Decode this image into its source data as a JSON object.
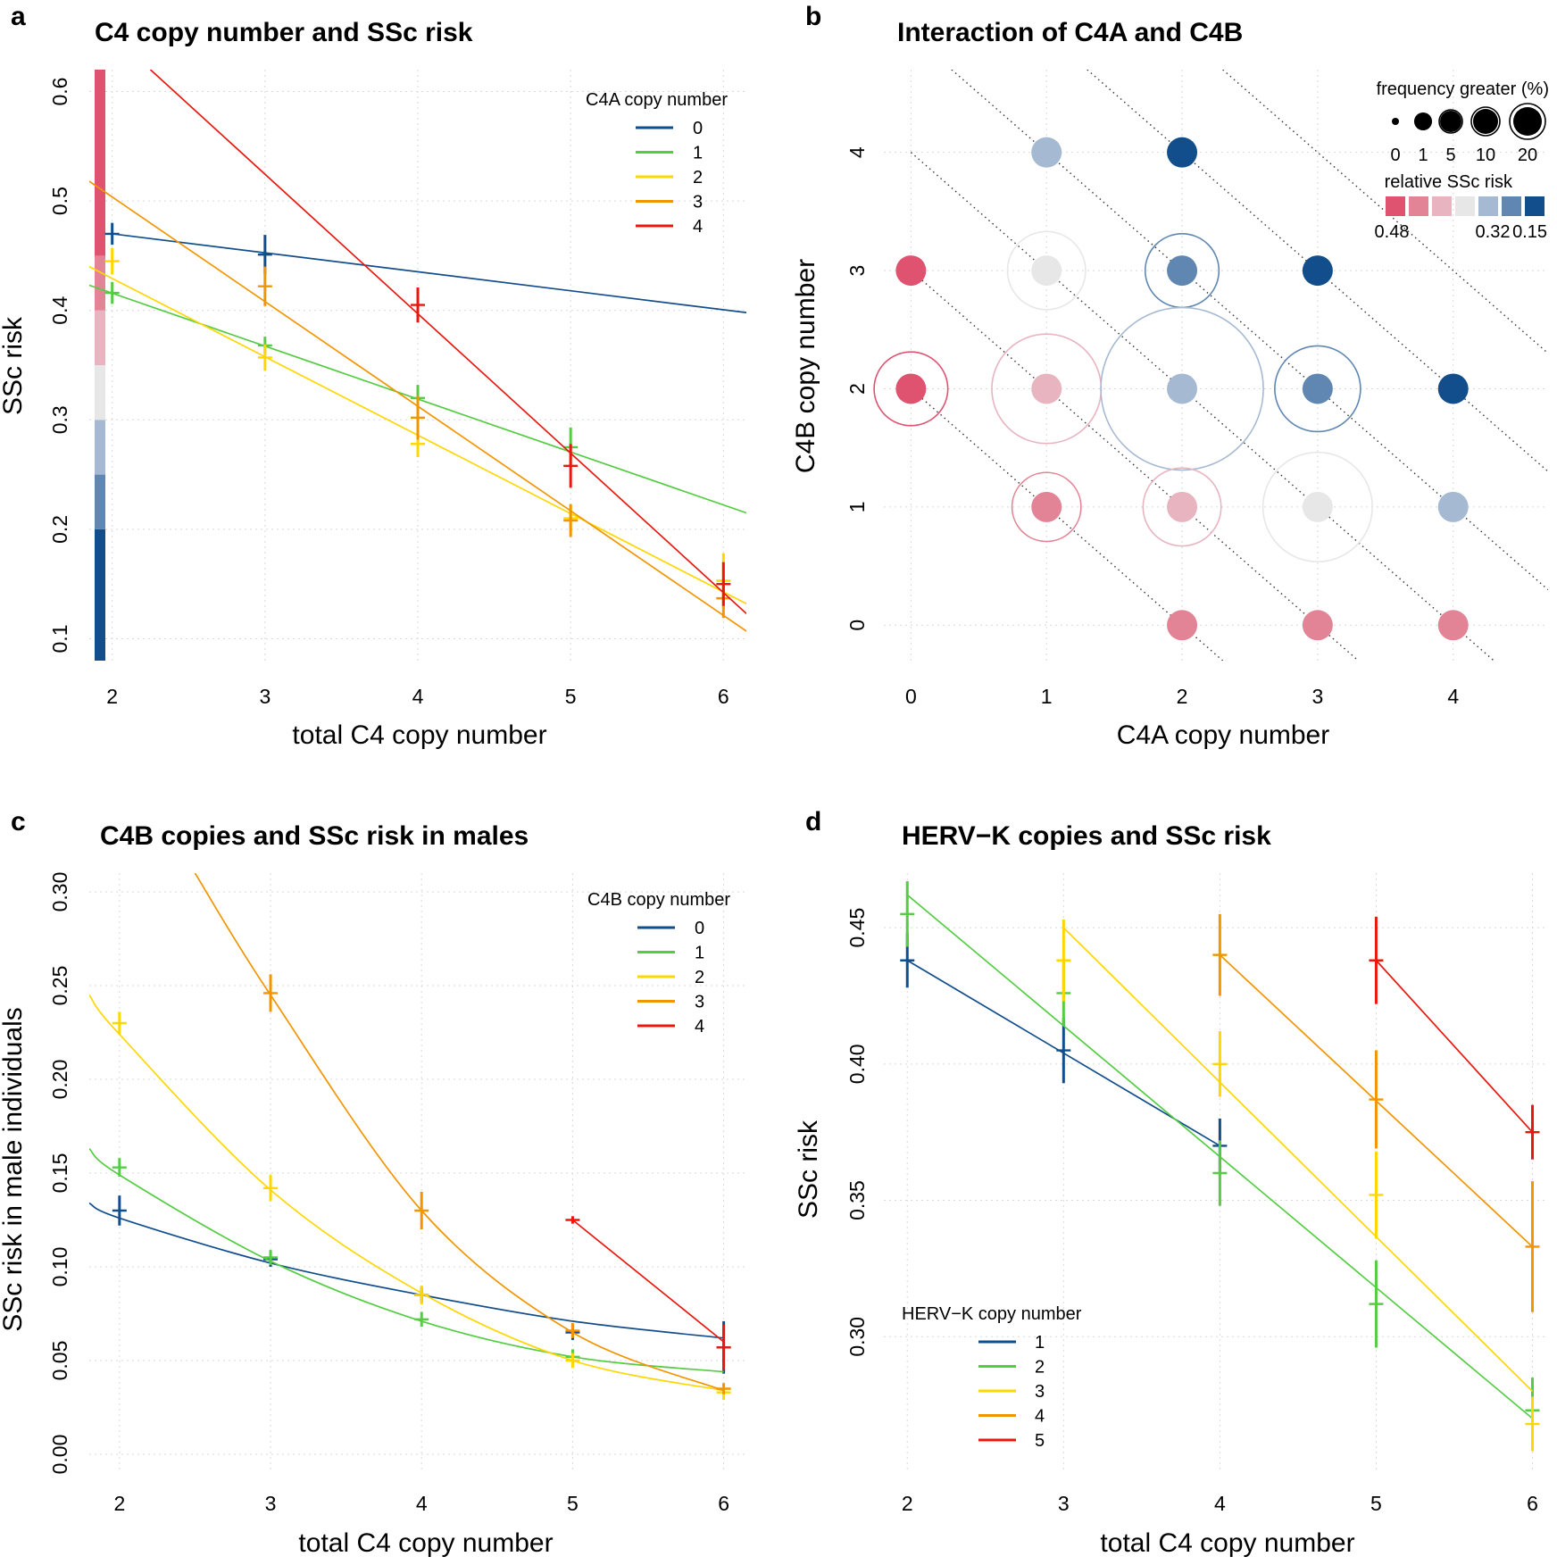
{
  "colors": {
    "c0": "#124e8c",
    "c1": "#55cc44",
    "c2": "#ffd700",
    "c3": "#f29500",
    "c4": "#e8180e",
    "risk_scale": [
      "#e05370",
      "#e38496",
      "#e8b4c0",
      "#e7e7e7",
      "#a6b9d2",
      "#5f87b2",
      "#124e8c"
    ]
  },
  "chart_data": [
    {
      "id": "a",
      "type": "line",
      "panel_letter": "a",
      "title": "C4 copy number and SSc risk",
      "xlabel": "total C4 copy number",
      "ylabel": "SSc risk",
      "xlim": [
        1.85,
        6.15
      ],
      "ylim": [
        0.08,
        0.62
      ],
      "xticks": [
        2,
        3,
        4,
        5,
        6
      ],
      "yticks": [
        0.1,
        0.2,
        0.3,
        0.4,
        0.5,
        0.6
      ],
      "grid": true,
      "legend": {
        "title": "C4A copy number",
        "position": "top-right",
        "entries": [
          "0",
          "1",
          "2",
          "3",
          "4"
        ]
      },
      "series": [
        {
          "name": "0",
          "color": "c0",
          "line": [
            [
              2,
              0.47
            ],
            [
              6.15,
              0.398
            ]
          ],
          "points": [
            {
              "x": 2,
              "y": 0.47,
              "err": 0.01
            },
            {
              "x": 3,
              "y": 0.451,
              "err": 0.018
            }
          ]
        },
        {
          "name": "1",
          "color": "c1",
          "line": [
            [
              1.85,
              0.423
            ],
            [
              6.15,
              0.215
            ]
          ],
          "points": [
            {
              "x": 2,
              "y": 0.416,
              "err": 0.01
            },
            {
              "x": 3,
              "y": 0.368,
              "err": 0.008
            },
            {
              "x": 4,
              "y": 0.32,
              "err": 0.012
            },
            {
              "x": 5,
              "y": 0.275,
              "err": 0.018
            }
          ]
        },
        {
          "name": "2",
          "color": "c2",
          "line": [
            [
              1.85,
              0.44
            ],
            [
              6.15,
              0.132
            ]
          ],
          "points": [
            {
              "x": 2,
              "y": 0.445,
              "err": 0.012
            },
            {
              "x": 3,
              "y": 0.357,
              "err": 0.012
            },
            {
              "x": 4,
              "y": 0.278,
              "err": 0.012
            },
            {
              "x": 5,
              "y": 0.21,
              "err": 0.012
            },
            {
              "x": 6,
              "y": 0.153,
              "err": 0.025
            }
          ]
        },
        {
          "name": "3",
          "color": "c3",
          "line": [
            [
              1.85,
              0.518
            ],
            [
              6.15,
              0.107
            ]
          ],
          "points": [
            {
              "x": 3,
              "y": 0.422,
              "err": 0.018
            },
            {
              "x": 4,
              "y": 0.302,
              "err": 0.02
            },
            {
              "x": 5,
              "y": 0.208,
              "err": 0.015
            },
            {
              "x": 6,
              "y": 0.137,
              "err": 0.018
            }
          ]
        },
        {
          "name": "4",
          "color": "c4",
          "line": [
            [
              2.25,
              0.62
            ],
            [
              6.15,
              0.123
            ]
          ],
          "points": [
            {
              "x": 4,
              "y": 0.405,
              "err": 0.016
            },
            {
              "x": 5,
              "y": 0.258,
              "err": 0.02
            },
            {
              "x": 6,
              "y": 0.15,
              "err": 0.02
            }
          ]
        }
      ],
      "risk_colorbar": [
        {
          "from": 0.08,
          "to": 0.2,
          "color": 6
        },
        {
          "from": 0.2,
          "to": 0.25,
          "color": 5
        },
        {
          "from": 0.25,
          "to": 0.3,
          "color": 4
        },
        {
          "from": 0.3,
          "to": 0.35,
          "color": 3
        },
        {
          "from": 0.35,
          "to": 0.4,
          "color": 2
        },
        {
          "from": 0.4,
          "to": 0.45,
          "color": 1
        },
        {
          "from": 0.45,
          "to": 0.62,
          "color": 0
        }
      ]
    },
    {
      "id": "b",
      "type": "scatter",
      "panel_letter": "b",
      "title": "Interaction of C4A and C4B",
      "xlabel": "C4A copy number",
      "ylabel": "C4B copy number",
      "xlim": [
        -0.2,
        4.7
      ],
      "ylim": [
        -0.3,
        4.7
      ],
      "xticks": [
        0,
        1,
        2,
        3,
        4
      ],
      "yticks": [
        0,
        1,
        2,
        3,
        4
      ],
      "grid": true,
      "diagonals": [
        2,
        3,
        4,
        5,
        6,
        7
      ],
      "size_legend": {
        "title": "frequency greater (%)",
        "position": "top-right",
        "labels": [
          "0",
          "1",
          "5",
          "10",
          "20"
        ]
      },
      "color_legend": {
        "title": "relative SSc risk",
        "labels": [
          "0.48",
          "0.32",
          "0.15"
        ]
      },
      "points": [
        {
          "x": 0,
          "y": 3,
          "color": 0,
          "freq": 0
        },
        {
          "x": 0,
          "y": 2,
          "color": 0,
          "freq": 2.5
        },
        {
          "x": 1,
          "y": 4,
          "color": 4,
          "freq": 0
        },
        {
          "x": 1,
          "y": 3,
          "color": 3,
          "freq": 3
        },
        {
          "x": 1,
          "y": 2,
          "color": 2,
          "freq": 8
        },
        {
          "x": 1,
          "y": 1,
          "color": 1,
          "freq": 2
        },
        {
          "x": 2,
          "y": 4,
          "color": 6,
          "freq": 0
        },
        {
          "x": 2,
          "y": 3,
          "color": 5,
          "freq": 2.5
        },
        {
          "x": 2,
          "y": 2,
          "color": 4,
          "freq": 22
        },
        {
          "x": 2,
          "y": 1,
          "color": 2,
          "freq": 3
        },
        {
          "x": 2,
          "y": 0,
          "color": 1,
          "freq": 0
        },
        {
          "x": 3,
          "y": 3,
          "color": 6,
          "freq": 0
        },
        {
          "x": 3,
          "y": 2,
          "color": 5,
          "freq": 4
        },
        {
          "x": 3,
          "y": 1,
          "color": 3,
          "freq": 8
        },
        {
          "x": 3,
          "y": 0,
          "color": 1,
          "freq": 0
        },
        {
          "x": 4,
          "y": 2,
          "color": 6,
          "freq": 0
        },
        {
          "x": 4,
          "y": 1,
          "color": 4,
          "freq": 0
        },
        {
          "x": 4,
          "y": 0,
          "color": 1,
          "freq": 0
        }
      ]
    },
    {
      "id": "c",
      "type": "line",
      "panel_letter": "c",
      "title": "C4B copies and SSc risk in males",
      "xlabel": "total C4 copy number",
      "ylabel": "SSc risk in male individuals",
      "xlim": [
        1.8,
        6.15
      ],
      "ylim": [
        -0.01,
        0.31
      ],
      "xticks": [
        2,
        3,
        4,
        5,
        6
      ],
      "yticks": [
        0.0,
        0.05,
        0.1,
        0.15,
        0.2,
        0.25,
        0.3
      ],
      "ytick_labels": [
        "0.00",
        "0.05",
        "0.10",
        "0.15",
        "0.20",
        "0.25",
        "0.30"
      ],
      "grid": true,
      "legend": {
        "title": "C4B copy number",
        "position": "top-right",
        "entries": [
          "0",
          "1",
          "2",
          "3",
          "4"
        ]
      },
      "series": [
        {
          "name": "0",
          "color": "c0",
          "curve": [
            [
              1.8,
              0.134
            ],
            [
              2,
              0.126
            ],
            [
              3,
              0.102
            ],
            [
              4,
              0.085
            ],
            [
              5,
              0.071
            ],
            [
              6,
              0.062
            ]
          ],
          "points": [
            {
              "x": 2,
              "y": 0.13,
              "err": 0.008
            },
            {
              "x": 3,
              "y": 0.104,
              "err": 0.004
            },
            {
              "x": 4,
              "y": 0.085,
              "err": 0.004
            },
            {
              "x": 5,
              "y": 0.065,
              "err": 0.004
            },
            {
              "x": 6,
              "y": 0.057,
              "err": 0.014
            }
          ]
        },
        {
          "name": "1",
          "color": "c1",
          "curve": [
            [
              1.8,
              0.163
            ],
            [
              2,
              0.149
            ],
            [
              3,
              0.103
            ],
            [
              4,
              0.071
            ],
            [
              5,
              0.052
            ],
            [
              6,
              0.044
            ]
          ],
          "points": [
            {
              "x": 2,
              "y": 0.153,
              "err": 0.005
            },
            {
              "x": 3,
              "y": 0.105,
              "err": 0.004
            },
            {
              "x": 4,
              "y": 0.072,
              "err": 0.004
            },
            {
              "x": 5,
              "y": 0.052,
              "err": 0.004
            }
          ]
        },
        {
          "name": "2",
          "color": "c2",
          "curve": [
            [
              1.8,
              0.245
            ],
            [
              2,
              0.224
            ],
            [
              3,
              0.141
            ],
            [
              4,
              0.086
            ],
            [
              5,
              0.05
            ],
            [
              6,
              0.034
            ]
          ],
          "points": [
            {
              "x": 2,
              "y": 0.23,
              "err": 0.006
            },
            {
              "x": 3,
              "y": 0.142,
              "err": 0.007
            },
            {
              "x": 4,
              "y": 0.085,
              "err": 0.005
            },
            {
              "x": 5,
              "y": 0.05,
              "err": 0.004
            },
            {
              "x": 6,
              "y": 0.033,
              "err": 0.004
            }
          ]
        },
        {
          "name": "3",
          "color": "c3",
          "curve": [
            [
              2.5,
              0.31
            ],
            [
              3,
              0.245
            ],
            [
              4,
              0.13
            ],
            [
              5,
              0.065
            ],
            [
              6,
              0.034
            ]
          ],
          "points": [
            {
              "x": 3,
              "y": 0.246,
              "err": 0.01
            },
            {
              "x": 4,
              "y": 0.13,
              "err": 0.01
            },
            {
              "x": 5,
              "y": 0.066,
              "err": 0.004
            },
            {
              "x": 6,
              "y": 0.035,
              "err": 0.003
            }
          ]
        },
        {
          "name": "4",
          "color": "c4",
          "curve": [
            [
              5,
              0.125
            ],
            [
              6,
              0.06
            ]
          ],
          "points": [
            {
              "x": 5,
              "y": 0.125,
              "err": 0.002
            },
            {
              "x": 6,
              "y": 0.057,
              "err": 0.012
            }
          ]
        }
      ]
    },
    {
      "id": "d",
      "type": "line",
      "panel_letter": "d",
      "title": "HERV−K copies and SSc risk",
      "xlabel": "total C4 copy number",
      "ylabel": "SSc risk",
      "xlim": [
        1.85,
        6.1
      ],
      "ylim": [
        0.25,
        0.47
      ],
      "xticks": [
        2,
        3,
        4,
        5,
        6
      ],
      "yticks": [
        0.3,
        0.35,
        0.4,
        0.45
      ],
      "ytick_labels": [
        "0.30",
        "0.35",
        "0.40",
        "0.45"
      ],
      "grid": true,
      "legend": {
        "title": "HERV−K copy number",
        "position": "bottom-left",
        "entries": [
          "1",
          "2",
          "3",
          "4",
          "5"
        ]
      },
      "series": [
        {
          "name": "1",
          "color": "c0",
          "line": [
            [
              2,
              0.438
            ],
            [
              4,
              0.37
            ]
          ],
          "points": [
            {
              "x": 2,
              "y": 0.438,
              "err": 0.01
            },
            {
              "x": 3,
              "y": 0.405,
              "err": 0.012
            },
            {
              "x": 4,
              "y": 0.37,
              "err": 0.01
            }
          ]
        },
        {
          "name": "2",
          "color": "c1",
          "line": [
            [
              2,
              0.462
            ],
            [
              6,
              0.27
            ]
          ],
          "points": [
            {
              "x": 2,
              "y": 0.455,
              "err": 0.012
            },
            {
              "x": 3,
              "y": 0.426,
              "err": 0.012
            },
            {
              "x": 4,
              "y": 0.36,
              "err": 0.012
            },
            {
              "x": 5,
              "y": 0.312,
              "err": 0.016
            },
            {
              "x": 6,
              "y": 0.273,
              "err": 0.012
            }
          ]
        },
        {
          "name": "3",
          "color": "c2",
          "line": [
            [
              3,
              0.45
            ],
            [
              6,
              0.28
            ]
          ],
          "points": [
            {
              "x": 3,
              "y": 0.438,
              "err": 0.015
            },
            {
              "x": 4,
              "y": 0.4,
              "err": 0.012
            },
            {
              "x": 5,
              "y": 0.352,
              "err": 0.016
            },
            {
              "x": 6,
              "y": 0.268,
              "err": 0.01
            }
          ]
        },
        {
          "name": "4",
          "color": "c3",
          "line": [
            [
              4,
              0.44
            ],
            [
              6,
              0.333
            ]
          ],
          "points": [
            {
              "x": 4,
              "y": 0.44,
              "err": 0.015
            },
            {
              "x": 5,
              "y": 0.387,
              "err": 0.018
            },
            {
              "x": 6,
              "y": 0.333,
              "err": 0.024
            }
          ]
        },
        {
          "name": "5",
          "color": "c4",
          "line": [
            [
              5,
              0.438
            ],
            [
              6,
              0.375
            ]
          ],
          "points": [
            {
              "x": 5,
              "y": 0.438,
              "err": 0.016
            },
            {
              "x": 6,
              "y": 0.375,
              "err": 0.01
            }
          ]
        }
      ]
    }
  ]
}
